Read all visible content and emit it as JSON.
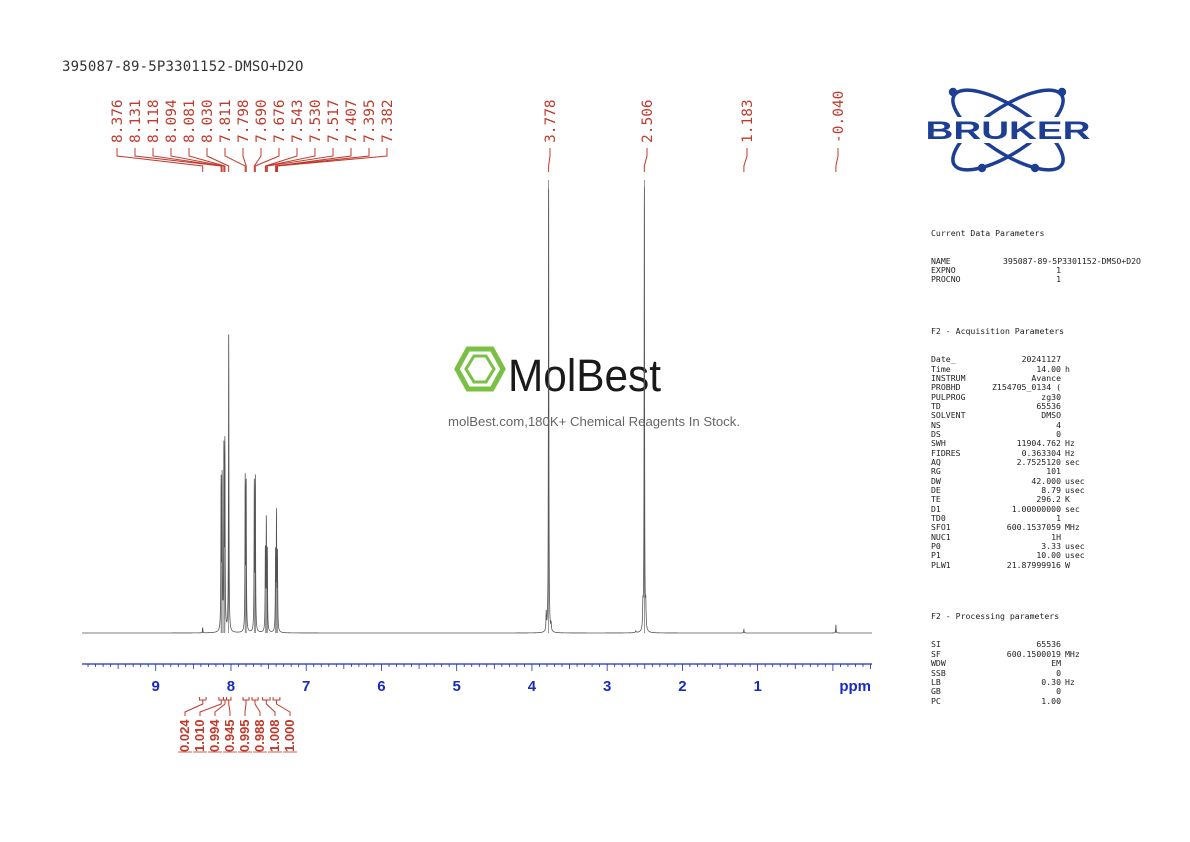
{
  "title": "395087-89-5P3301152-DMSO+D2O",
  "watermark": {
    "brand": "MolBest",
    "tagline": "molBest.com,180K+ Chemical Reagents In Stock.",
    "brand_color": "#7ac043"
  },
  "bruker_logo": {
    "text": "BRUKER",
    "color": "#1c3f94"
  },
  "colors": {
    "peak_label": "#c0392b",
    "axis": "#1a2bbf",
    "integral": "#c0392b",
    "spectrum": "#555555"
  },
  "parameters": {
    "current": {
      "heading": "Current Data Parameters",
      "rows": [
        {
          "k": "NAME",
          "v": "395087-89-5P3301152-DMSO+D2O",
          "u": ""
        },
        {
          "k": "EXPNO",
          "v": "1",
          "u": ""
        },
        {
          "k": "PROCNO",
          "v": "1",
          "u": ""
        }
      ]
    },
    "acquisition": {
      "heading": "F2 - Acquisition Parameters",
      "rows": [
        {
          "k": "Date_",
          "v": "20241127",
          "u": ""
        },
        {
          "k": "Time",
          "v": "14.00",
          "u": "h"
        },
        {
          "k": "INSTRUM",
          "v": "Avance",
          "u": ""
        },
        {
          "k": "PROBHD",
          "v": "Z154705_0134 (",
          "u": ""
        },
        {
          "k": "PULPROG",
          "v": "zg30",
          "u": ""
        },
        {
          "k": "TD",
          "v": "65536",
          "u": ""
        },
        {
          "k": "SOLVENT",
          "v": "DMSO",
          "u": ""
        },
        {
          "k": "NS",
          "v": "4",
          "u": ""
        },
        {
          "k": "DS",
          "v": "0",
          "u": ""
        },
        {
          "k": "SWH",
          "v": "11904.762",
          "u": "Hz"
        },
        {
          "k": "FIDRES",
          "v": "0.363304",
          "u": "Hz"
        },
        {
          "k": "AQ",
          "v": "2.7525120",
          "u": "sec"
        },
        {
          "k": "RG",
          "v": "101",
          "u": ""
        },
        {
          "k": "DW",
          "v": "42.000",
          "u": "usec"
        },
        {
          "k": "DE",
          "v": "8.79",
          "u": "usec"
        },
        {
          "k": "TE",
          "v": "296.2",
          "u": "K"
        },
        {
          "k": "D1",
          "v": "1.00000000",
          "u": "sec"
        },
        {
          "k": "TD0",
          "v": "1",
          "u": ""
        },
        {
          "k": "SFO1",
          "v": "600.1537059",
          "u": "MHz"
        },
        {
          "k": "NUC1",
          "v": "1H",
          "u": ""
        },
        {
          "k": "P0",
          "v": "3.33",
          "u": "usec"
        },
        {
          "k": "P1",
          "v": "10.00",
          "u": "usec"
        },
        {
          "k": "PLW1",
          "v": "21.87999916",
          "u": "W"
        }
      ]
    },
    "processing": {
      "heading": "F2 - Processing parameters",
      "rows": [
        {
          "k": "SI",
          "v": "65536",
          "u": ""
        },
        {
          "k": "SF",
          "v": "600.1500019",
          "u": "MHz"
        },
        {
          "k": "WDW",
          "v": "EM",
          "u": ""
        },
        {
          "k": "SSB",
          "v": "0",
          "u": ""
        },
        {
          "k": "LB",
          "v": "0.30",
          "u": "Hz"
        },
        {
          "k": "GB",
          "v": "0",
          "u": ""
        },
        {
          "k": "PC",
          "v": "1.00",
          "u": ""
        }
      ]
    }
  },
  "chart_data": {
    "type": "line",
    "xlabel": "ppm",
    "xlim": [
      9.98,
      -0.52
    ],
    "x_reversed": true,
    "x_ticks": [
      "9",
      "8",
      "7",
      "6",
      "5",
      "4",
      "3",
      "2",
      "1"
    ],
    "x_tick_values": [
      9,
      8,
      7,
      6,
      5,
      4,
      3,
      2,
      1
    ],
    "peak_labels": [
      "8.376",
      "8.131",
      "8.118",
      "8.094",
      "8.081",
      "8.030",
      "7.811",
      "7.798",
      "7.690",
      "7.676",
      "7.543",
      "7.530",
      "7.517",
      "7.407",
      "7.395",
      "7.382",
      "3.778",
      "2.506",
      "1.183",
      "-0.040"
    ],
    "peaks": [
      {
        "ppm": 8.376,
        "height": 0.012
      },
      {
        "ppm": 8.131,
        "height": 0.325
      },
      {
        "ppm": 8.118,
        "height": 0.33
      },
      {
        "ppm": 8.094,
        "height": 0.395
      },
      {
        "ppm": 8.081,
        "height": 0.4
      },
      {
        "ppm": 8.03,
        "height": 0.655
      },
      {
        "ppm": 7.811,
        "height": 0.33
      },
      {
        "ppm": 7.798,
        "height": 0.325
      },
      {
        "ppm": 7.69,
        "height": 0.325
      },
      {
        "ppm": 7.676,
        "height": 0.33
      },
      {
        "ppm": 7.543,
        "height": 0.175
      },
      {
        "ppm": 7.53,
        "height": 0.24
      },
      {
        "ppm": 7.517,
        "height": 0.17
      },
      {
        "ppm": 7.407,
        "height": 0.17
      },
      {
        "ppm": 7.395,
        "height": 0.255
      },
      {
        "ppm": 7.382,
        "height": 0.165
      },
      {
        "ppm": 3.778,
        "height": 1.0
      },
      {
        "ppm": 2.506,
        "height": 1.0
      },
      {
        "ppm": 1.183,
        "height": 0.008
      },
      {
        "ppm": -0.04,
        "height": 0.018
      }
    ],
    "integrals": [
      {
        "label": "0.024",
        "from": 8.42,
        "to": 8.33
      },
      {
        "label": "1.010",
        "from": 8.16,
        "to": 8.1
      },
      {
        "label": "0.994",
        "from": 8.1,
        "to": 8.06
      },
      {
        "label": "0.945",
        "from": 8.06,
        "to": 8.0
      },
      {
        "label": "0.995",
        "from": 7.84,
        "to": 7.76
      },
      {
        "label": "0.988",
        "from": 7.72,
        "to": 7.64
      },
      {
        "label": "1.008",
        "from": 7.58,
        "to": 7.48
      },
      {
        "label": "1.000",
        "from": 7.44,
        "to": 7.35
      }
    ]
  }
}
